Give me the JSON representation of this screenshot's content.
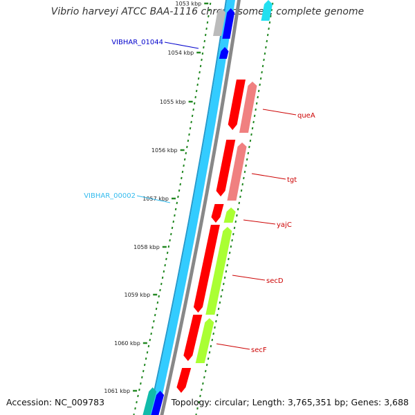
{
  "title": "Vibrio harveyi ATCC BAA-1116 chromosome I, complete genome",
  "footer": {
    "accession": "Accession: NC_009783",
    "summary": "Topology: circular; Length: 3,765,351 bp; Genes: 3,688"
  },
  "ticks": [
    {
      "label": "1053 kbp",
      "kbp": 1053
    },
    {
      "label": "1054 kbp",
      "kbp": 1054
    },
    {
      "label": "1055 kbp",
      "kbp": 1055
    },
    {
      "label": "1056 kbp",
      "kbp": 1056
    },
    {
      "label": "1057 kbp",
      "kbp": 1057
    },
    {
      "label": "1058 kbp",
      "kbp": 1058
    },
    {
      "label": "1059 kbp",
      "kbp": 1059
    },
    {
      "label": "1060 kbp",
      "kbp": 1060
    },
    {
      "label": "1061 kbp",
      "kbp": 1061
    }
  ],
  "contig_labels": [
    {
      "label": "VIBHAR_01044",
      "color": "#0000cc"
    },
    {
      "label": "VIBHAR_00002",
      "color": "#33bbee"
    }
  ],
  "gene_labels": [
    {
      "label": "queA",
      "color": "#cc0000"
    },
    {
      "label": "tgt",
      "color": "#cc0000"
    },
    {
      "label": "yajC",
      "color": "#cc0000"
    },
    {
      "label": "secD",
      "color": "#cc0000"
    },
    {
      "label": "secF",
      "color": "#cc0000"
    }
  ],
  "colors": {
    "cds": "#ff0000",
    "gene_pale": "#f08080",
    "cog": "#aaff33",
    "contig": "#33ccff",
    "contig_dark": "#0000ff",
    "backbone": "#888888",
    "tick": "#228822",
    "teal": "#11bbaa"
  }
}
